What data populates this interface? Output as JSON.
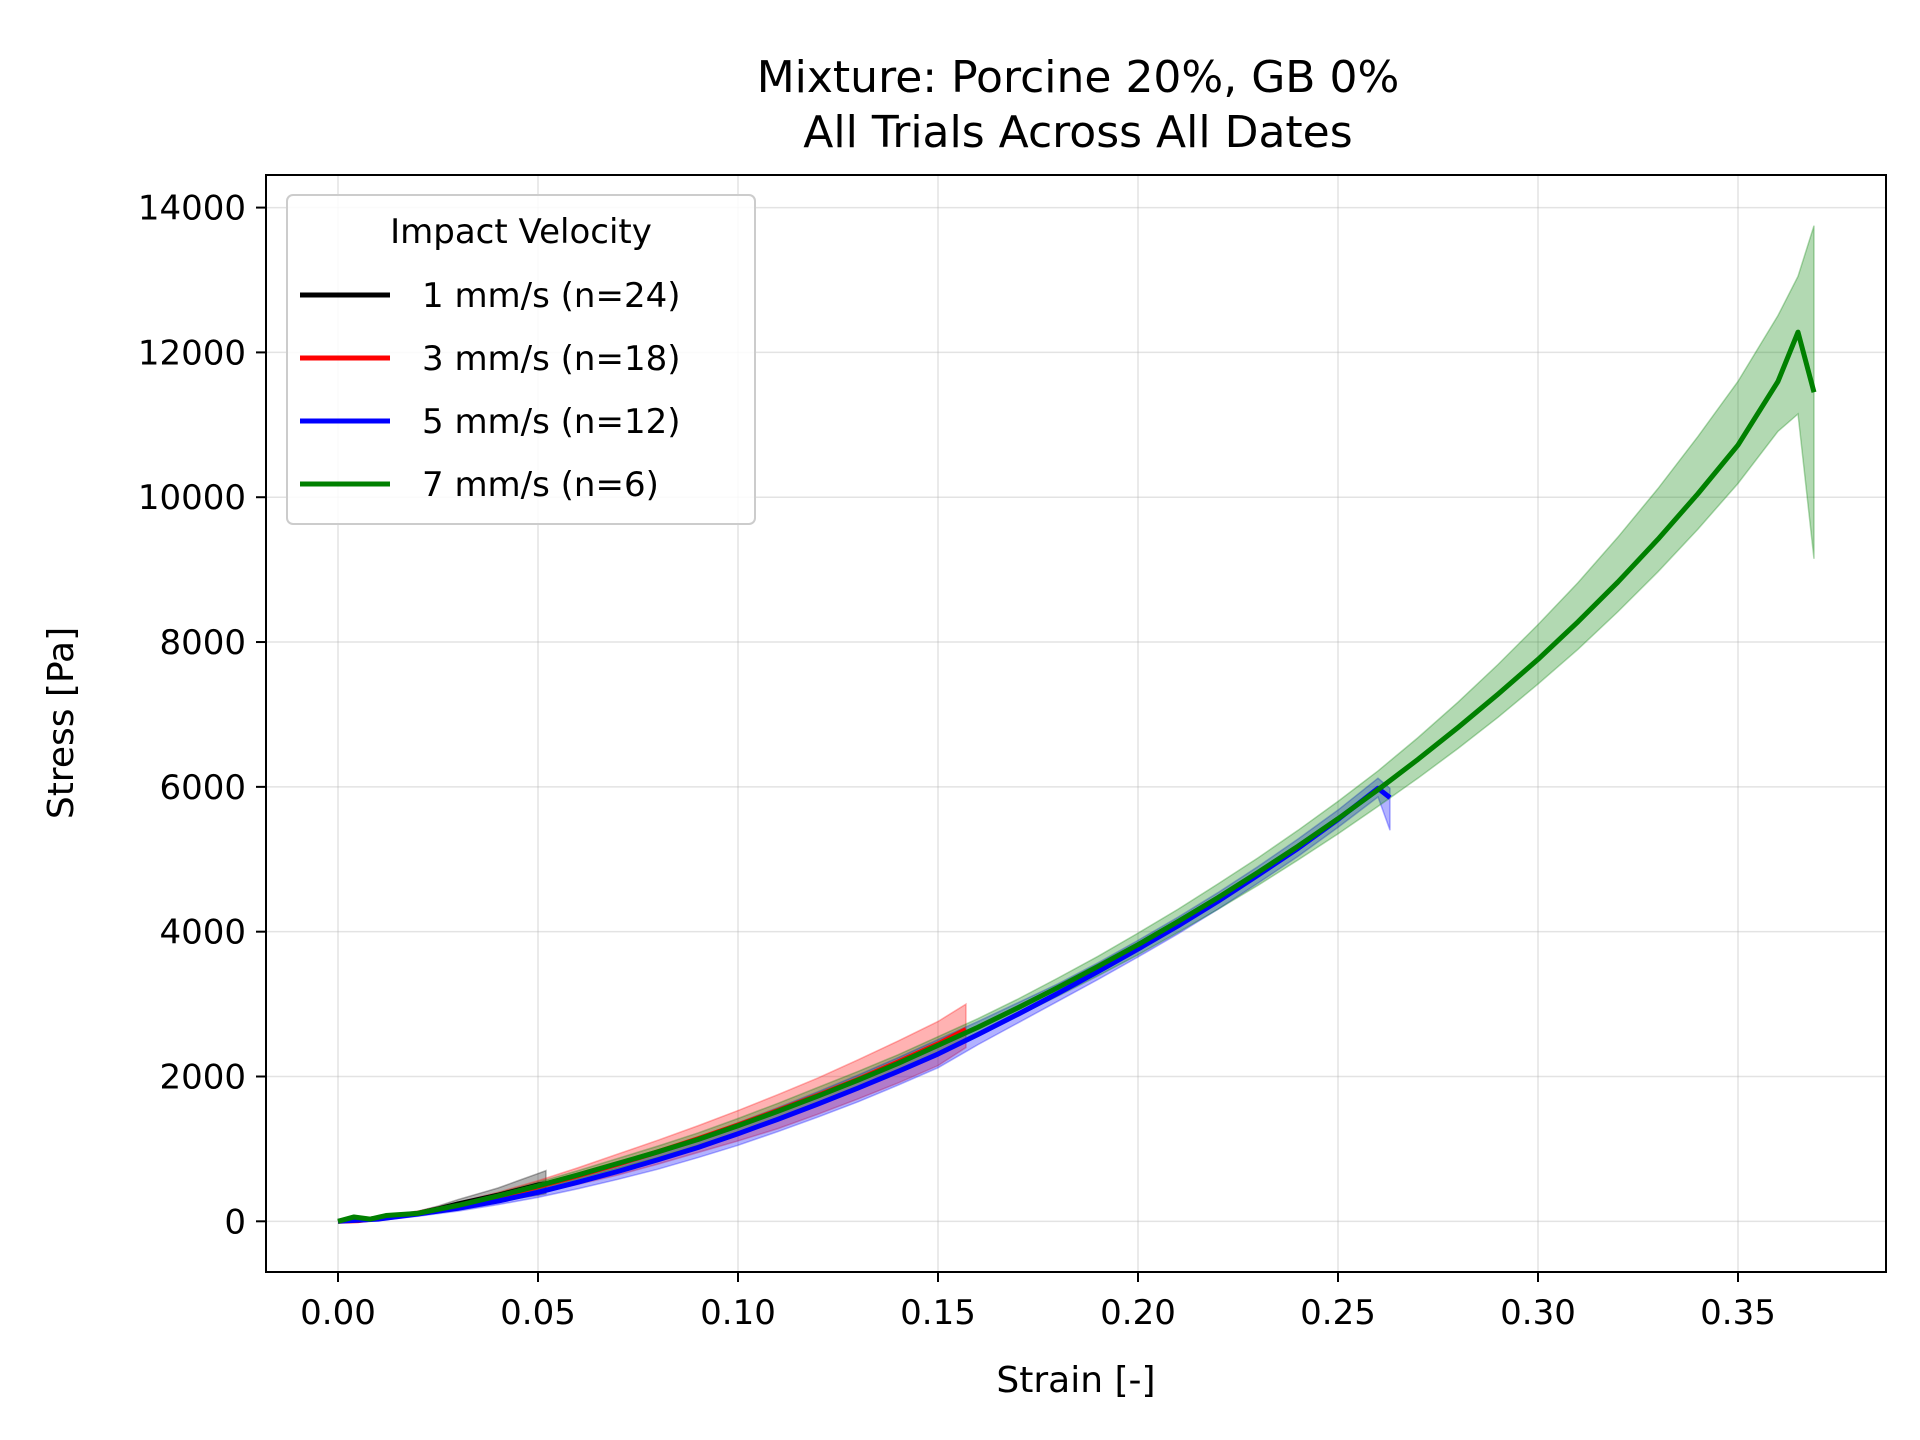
{
  "chart_data": {
    "type": "line",
    "title": "Mixture: Porcine 20%, GB 0%",
    "subtitle": "All Trials Across All Dates",
    "xlabel": "Strain [-]",
    "ylabel": "Stress [Pa]",
    "xlim": [
      -0.018,
      0.387
    ],
    "ylim": [
      -700,
      14450
    ],
    "xticks": [
      0.0,
      0.05,
      0.1,
      0.15,
      0.2,
      0.25,
      0.3,
      0.35
    ],
    "xtick_labels": [
      "0.00",
      "0.05",
      "0.10",
      "0.15",
      "0.20",
      "0.25",
      "0.30",
      "0.35"
    ],
    "yticks": [
      0,
      2000,
      4000,
      6000,
      8000,
      10000,
      12000,
      14000
    ],
    "ytick_labels": [
      "0",
      "2000",
      "4000",
      "6000",
      "8000",
      "10000",
      "12000",
      "14000"
    ],
    "grid": true,
    "legend": {
      "title": "Impact Velocity",
      "placement": "upper-left"
    },
    "series": [
      {
        "name": "1 mm/s (n=24)",
        "color": "#000000",
        "x": [
          0.0,
          0.004,
          0.008,
          0.012,
          0.016,
          0.02,
          0.025,
          0.03,
          0.035,
          0.04,
          0.045,
          0.05,
          0.052
        ],
        "y": [
          0,
          40,
          30,
          60,
          80,
          110,
          170,
          240,
          300,
          360,
          430,
          500,
          520
        ],
        "lower": [
          0,
          20,
          10,
          40,
          60,
          90,
          130,
          180,
          230,
          280,
          320,
          360,
          380
        ],
        "upper": [
          0,
          60,
          50,
          80,
          110,
          140,
          210,
          300,
          380,
          460,
          560,
          660,
          700
        ]
      },
      {
        "name": "3 mm/s (n=18)",
        "color": "#ff0000",
        "x": [
          0.0,
          0.005,
          0.01,
          0.02,
          0.03,
          0.04,
          0.05,
          0.06,
          0.07,
          0.08,
          0.09,
          0.1,
          0.11,
          0.12,
          0.13,
          0.14,
          0.15,
          0.157
        ],
        "y": [
          0,
          10,
          40,
          110,
          210,
          340,
          480,
          630,
          790,
          960,
          1140,
          1330,
          1530,
          1740,
          1960,
          2200,
          2450,
          2650
        ],
        "lower": [
          0,
          0,
          20,
          80,
          170,
          280,
          390,
          510,
          640,
          790,
          950,
          1110,
          1280,
          1480,
          1690,
          1910,
          2150,
          2400
        ],
        "upper": [
          0,
          20,
          60,
          140,
          260,
          400,
          560,
          740,
          930,
          1120,
          1320,
          1530,
          1750,
          1980,
          2230,
          2490,
          2760,
          3000
        ]
      },
      {
        "name": "5 mm/s (n=12)",
        "color": "#0000ff",
        "x": [
          0.0,
          0.01,
          0.02,
          0.03,
          0.04,
          0.05,
          0.06,
          0.07,
          0.08,
          0.09,
          0.1,
          0.11,
          0.12,
          0.13,
          0.14,
          0.15,
          0.16,
          0.17,
          0.18,
          0.19,
          0.2,
          0.21,
          0.22,
          0.23,
          0.24,
          0.25,
          0.26,
          0.263
        ],
        "y": [
          0,
          30,
          100,
          180,
          280,
          400,
          540,
          690,
          850,
          1020,
          1210,
          1410,
          1620,
          1840,
          2070,
          2310,
          2580,
          2860,
          3150,
          3450,
          3760,
          4080,
          4420,
          4780,
          5150,
          5550,
          5980,
          5850
        ],
        "lower": [
          0,
          10,
          70,
          140,
          230,
          330,
          450,
          580,
          720,
          880,
          1050,
          1240,
          1440,
          1650,
          1880,
          2120,
          2440,
          2740,
          3040,
          3340,
          3650,
          3970,
          4310,
          4670,
          5040,
          5440,
          5860,
          5400
        ],
        "upper": [
          0,
          50,
          130,
          220,
          330,
          470,
          620,
          790,
          970,
          1150,
          1360,
          1570,
          1790,
          2020,
          2260,
          2510,
          2760,
          3020,
          3280,
          3570,
          3880,
          4200,
          4540,
          4900,
          5280,
          5680,
          6120,
          5980
        ]
      },
      {
        "name": "7 mm/s (n=6)",
        "color": "#008000",
        "x": [
          0.0,
          0.004,
          0.008,
          0.012,
          0.02,
          0.03,
          0.04,
          0.05,
          0.06,
          0.07,
          0.08,
          0.09,
          0.1,
          0.11,
          0.12,
          0.13,
          0.14,
          0.15,
          0.16,
          0.17,
          0.18,
          0.19,
          0.2,
          0.21,
          0.22,
          0.23,
          0.24,
          0.25,
          0.26,
          0.27,
          0.28,
          0.29,
          0.3,
          0.31,
          0.32,
          0.33,
          0.34,
          0.35,
          0.36,
          0.365,
          0.369
        ],
        "y": [
          0,
          60,
          30,
          80,
          110,
          220,
          350,
          490,
          640,
          800,
          960,
          1130,
          1320,
          1520,
          1730,
          1950,
          2180,
          2430,
          2680,
          2950,
          3230,
          3520,
          3820,
          4140,
          4470,
          4820,
          5180,
          5560,
          5960,
          6380,
          6820,
          7280,
          7760,
          8280,
          8830,
          9420,
          10050,
          10720,
          11600,
          12280,
          11450
        ],
        "lower": [
          0,
          40,
          10,
          60,
          90,
          190,
          310,
          440,
          580,
          730,
          880,
          1050,
          1230,
          1420,
          1630,
          1850,
          2080,
          2330,
          2580,
          2840,
          3110,
          3390,
          3680,
          3990,
          4310,
          4640,
          4990,
          5350,
          5730,
          6120,
          6530,
          6960,
          7420,
          7900,
          8420,
          8970,
          9560,
          10190,
          10910,
          11150,
          9150
        ],
        "upper": [
          0,
          80,
          50,
          100,
          130,
          250,
          390,
          540,
          700,
          870,
          1040,
          1220,
          1420,
          1630,
          1850,
          2070,
          2300,
          2550,
          2800,
          3070,
          3360,
          3660,
          3980,
          4310,
          4660,
          5020,
          5400,
          5800,
          6220,
          6680,
          7170,
          7690,
          8240,
          8820,
          9450,
          10120,
          10840,
          11600,
          12510,
          13050,
          13750
        ]
      }
    ]
  }
}
